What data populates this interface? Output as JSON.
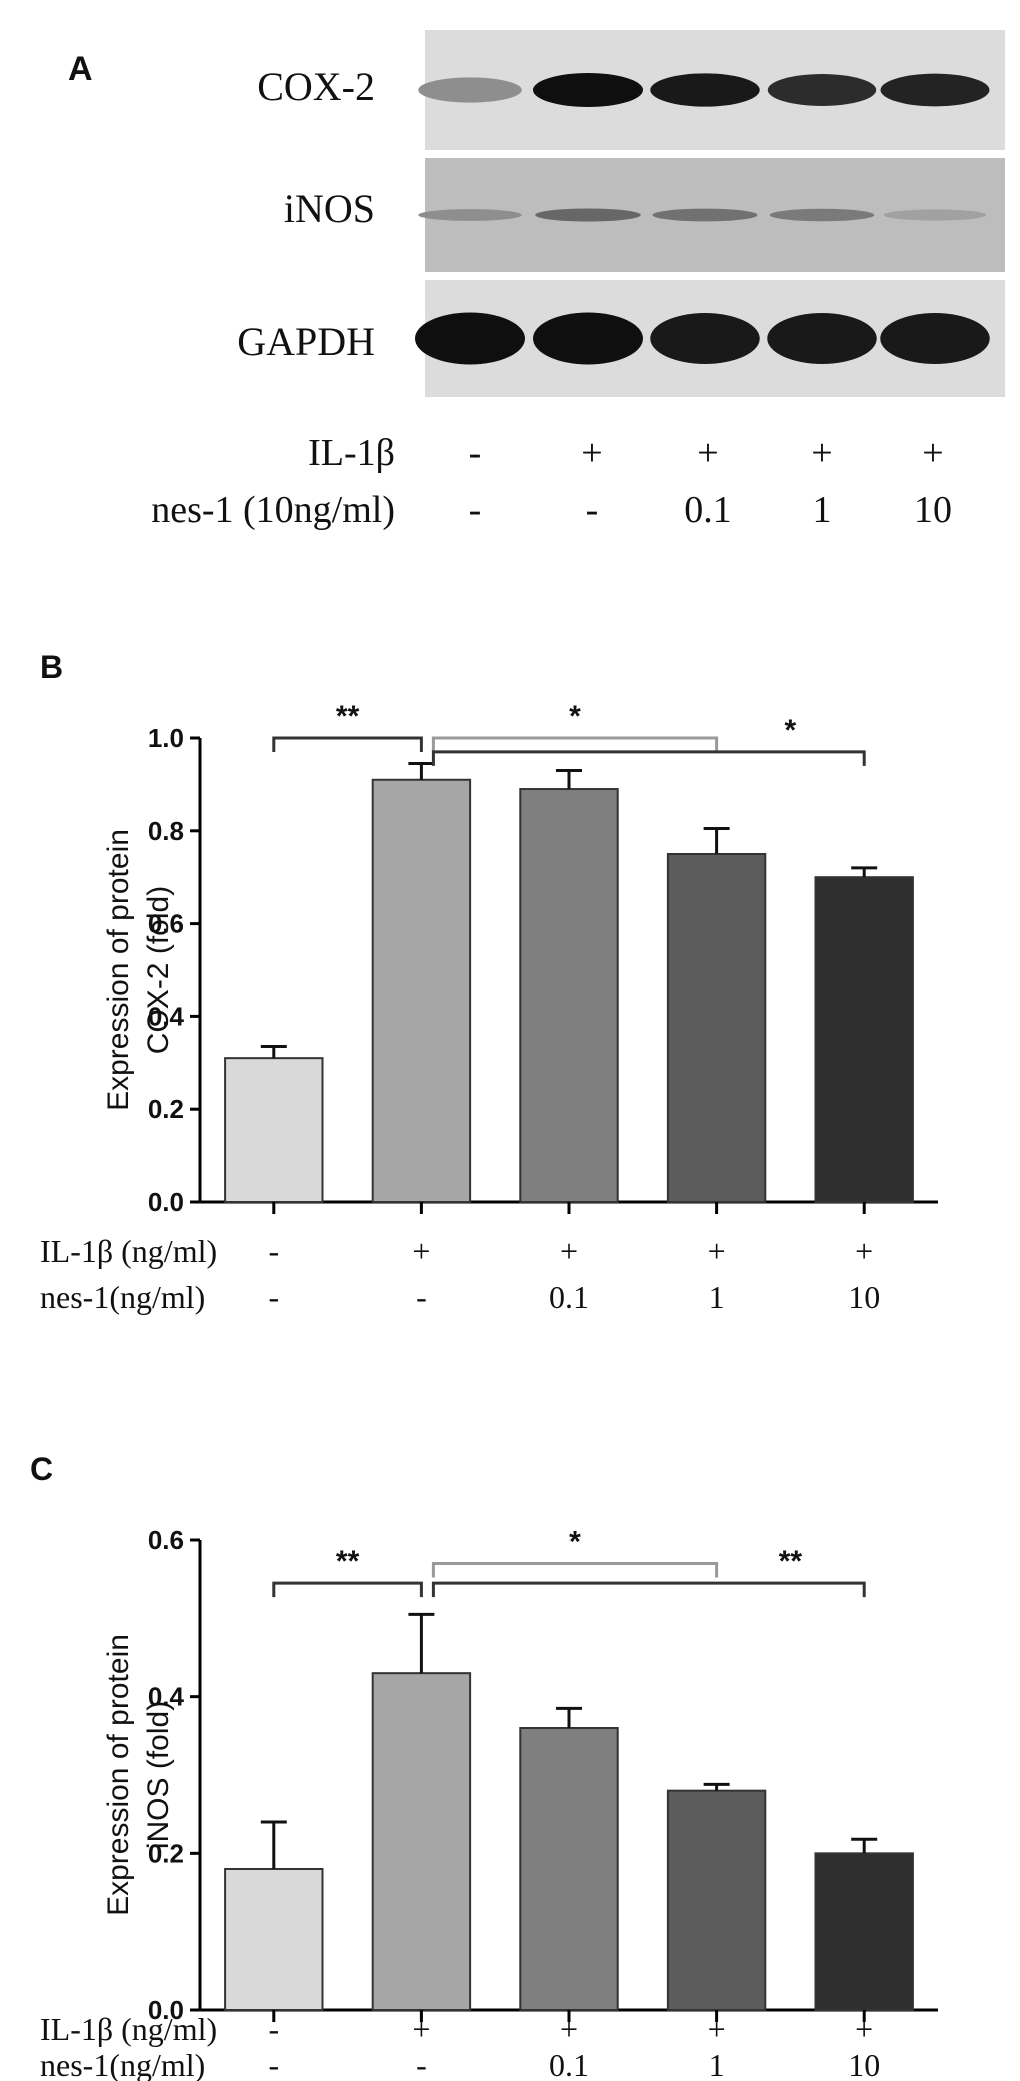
{
  "colors": {
    "blot_bg": "#dcdcdc",
    "inos_bg": "#bdbdbd",
    "band": "#111111",
    "text": "#111111",
    "axis": "#000000",
    "bar_fills": [
      "#d9d9d9",
      "#a6a6a6",
      "#7f7f7f",
      "#5c5c5c",
      "#2f2f2f"
    ]
  },
  "panel_a": {
    "letter": "A",
    "proteins": [
      "COX-2",
      "iNOS",
      "GAPDH"
    ],
    "row1_label": "IL-1β",
    "row1_values": [
      "-",
      "+",
      "+",
      "+",
      "+"
    ],
    "row2_label": "nes-1 (10ng/ml)",
    "row2_values": [
      "-",
      "-",
      "0.1",
      "1",
      "10"
    ],
    "band_intensity": {
      "COX-2": [
        0.35,
        1.0,
        0.95,
        0.85,
        0.9
      ],
      "iNOS": [
        0.35,
        0.55,
        0.5,
        0.45,
        0.25
      ],
      "GAPDH": [
        1.0,
        1.0,
        0.95,
        0.95,
        0.95
      ]
    }
  },
  "chart_data": [
    {
      "type": "bar",
      "letter": "B",
      "ylabel_line1": "Expression of protein",
      "ylabel_line2": "COX-2 (fold)",
      "ylim": [
        0.0,
        1.0
      ],
      "yticks": [
        0.0,
        0.2,
        0.4,
        0.6,
        0.8,
        1.0
      ],
      "ytick_labels": [
        "0.0",
        "0.2",
        "0.4",
        "0.6",
        "0.8",
        "1.0"
      ],
      "values": [
        0.31,
        0.91,
        0.89,
        0.75,
        0.7
      ],
      "errors": [
        0.025,
        0.035,
        0.04,
        0.055,
        0.02
      ],
      "row1_label": "IL-1β (ng/ml)",
      "row1_values": [
        "-",
        "+",
        "+",
        "+",
        "+"
      ],
      "row2_label": "nes-1(ng/ml)",
      "row2_values": [
        "-",
        "-",
        "0.1",
        "1",
        "10"
      ],
      "significance": [
        {
          "from": 0,
          "to": 1,
          "label": "**",
          "level": 1.0,
          "style": "dark"
        },
        {
          "from": 1,
          "to": 3,
          "label": "*",
          "level": 1.0,
          "style": "light"
        },
        {
          "from": 1,
          "to": 4,
          "label": "*",
          "level": 0.97,
          "style": "dark"
        }
      ]
    },
    {
      "type": "bar",
      "letter": "C",
      "ylabel_line1": "Expression of protein",
      "ylabel_line2": "iNOS (fold)",
      "ylim": [
        0.0,
        0.6
      ],
      "yticks": [
        0.0,
        0.2,
        0.4,
        0.6
      ],
      "ytick_labels": [
        "0.0",
        "0.2",
        "0.4",
        "0.6"
      ],
      "values": [
        0.18,
        0.43,
        0.36,
        0.28,
        0.2
      ],
      "errors": [
        0.06,
        0.075,
        0.025,
        0.008,
        0.018
      ],
      "row1_label": "IL-1β (ng/ml)",
      "row1_values": [
        "-",
        "+",
        "+",
        "+",
        "+"
      ],
      "row2_label": "nes-1(ng/ml)",
      "row2_values": [
        "-",
        "-",
        "0.1",
        "1",
        "10"
      ],
      "significance": [
        {
          "from": 0,
          "to": 1,
          "label": "**",
          "level": 0.545,
          "style": "dark"
        },
        {
          "from": 1,
          "to": 3,
          "label": "*",
          "level": 0.57,
          "style": "light"
        },
        {
          "from": 1,
          "to": 4,
          "label": "**",
          "level": 0.545,
          "style": "dark"
        }
      ]
    }
  ]
}
